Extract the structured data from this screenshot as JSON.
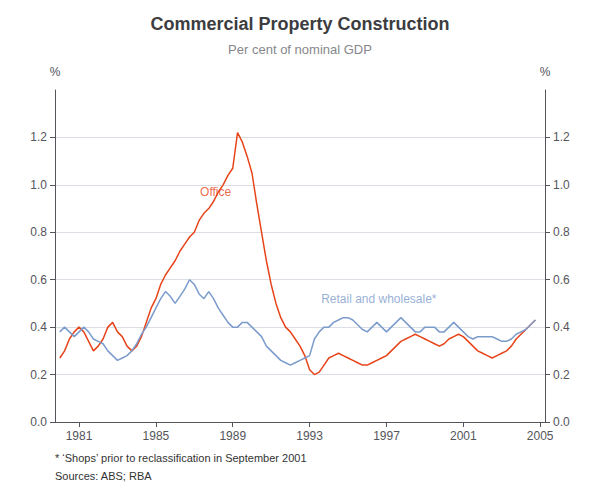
{
  "chart_data": {
    "type": "line",
    "title": "Commercial Property Construction",
    "subtitle": "Per cent of nominal GDP",
    "ylabel": "%",
    "y2label": "%",
    "footnotes": [
      "* ‘Shops’ prior to reclassification in September 2001",
      "Sources: ABS; RBA"
    ],
    "annotations": [
      {
        "text": "Office",
        "x": 1987.3,
        "y": 0.97,
        "color": "#e8441a"
      },
      {
        "text": "Retail and wholesale*",
        "x": 1993.6,
        "y": 0.52,
        "color": "#7b9bcc"
      }
    ],
    "x": [
      1980.0,
      1980.25,
      1980.5,
      1980.75,
      1981.0,
      1981.25,
      1981.5,
      1981.75,
      1982.0,
      1982.25,
      1982.5,
      1982.75,
      1983.0,
      1983.25,
      1983.5,
      1983.75,
      1984.0,
      1984.25,
      1984.5,
      1984.75,
      1985.0,
      1985.25,
      1985.5,
      1985.75,
      1986.0,
      1986.25,
      1986.5,
      1986.75,
      1987.0,
      1987.25,
      1987.5,
      1987.75,
      1988.0,
      1988.25,
      1988.5,
      1988.75,
      1989.0,
      1989.25,
      1989.5,
      1989.75,
      1990.0,
      1990.25,
      1990.5,
      1990.75,
      1991.0,
      1991.25,
      1991.5,
      1991.75,
      1992.0,
      1992.25,
      1992.5,
      1992.75,
      1993.0,
      1993.25,
      1993.5,
      1993.75,
      1994.0,
      1994.25,
      1994.5,
      1994.75,
      1995.0,
      1995.25,
      1995.5,
      1995.75,
      1996.0,
      1996.25,
      1996.5,
      1996.75,
      1997.0,
      1997.25,
      1997.5,
      1997.75,
      1998.0,
      1998.25,
      1998.5,
      1998.75,
      1999.0,
      1999.25,
      1999.5,
      1999.75,
      2000.0,
      2000.25,
      2000.5,
      2000.75,
      2001.0,
      2001.25,
      2001.5,
      2001.75,
      2002.0,
      2002.25,
      2002.5,
      2002.75,
      2003.0,
      2003.25,
      2003.5,
      2003.75,
      2004.0,
      2004.25,
      2004.5,
      2004.75
    ],
    "series": [
      {
        "color": "#e8441a",
        "values": [
          0.27,
          0.3,
          0.35,
          0.38,
          0.4,
          0.38,
          0.34,
          0.3,
          0.32,
          0.35,
          0.4,
          0.42,
          0.38,
          0.36,
          0.32,
          0.3,
          0.32,
          0.36,
          0.42,
          0.48,
          0.52,
          0.58,
          0.62,
          0.65,
          0.68,
          0.72,
          0.75,
          0.78,
          0.8,
          0.85,
          0.88,
          0.9,
          0.93,
          0.97,
          1.0,
          1.04,
          1.07,
          1.22,
          1.18,
          1.12,
          1.05,
          0.92,
          0.8,
          0.68,
          0.58,
          0.5,
          0.44,
          0.4,
          0.38,
          0.35,
          0.32,
          0.28,
          0.22,
          0.2,
          0.21,
          0.24,
          0.27,
          0.28,
          0.29,
          0.28,
          0.27,
          0.26,
          0.25,
          0.24,
          0.24,
          0.25,
          0.26,
          0.27,
          0.28,
          0.3,
          0.32,
          0.34,
          0.35,
          0.36,
          0.37,
          0.36,
          0.35,
          0.34,
          0.33,
          0.32,
          0.33,
          0.35,
          0.36,
          0.37,
          0.36,
          0.34,
          0.32,
          0.3,
          0.29,
          0.28,
          0.27,
          0.28,
          0.29,
          0.3,
          0.32,
          0.35,
          0.37,
          0.39,
          0.41,
          0.43
        ]
      },
      {
        "color": "#7b9bcc",
        "values": [
          0.38,
          0.4,
          0.38,
          0.36,
          0.38,
          0.4,
          0.38,
          0.35,
          0.34,
          0.33,
          0.3,
          0.28,
          0.26,
          0.27,
          0.28,
          0.3,
          0.33,
          0.37,
          0.4,
          0.44,
          0.48,
          0.52,
          0.55,
          0.53,
          0.5,
          0.53,
          0.56,
          0.6,
          0.58,
          0.54,
          0.52,
          0.55,
          0.52,
          0.48,
          0.45,
          0.42,
          0.4,
          0.4,
          0.42,
          0.42,
          0.4,
          0.38,
          0.36,
          0.32,
          0.3,
          0.28,
          0.26,
          0.25,
          0.24,
          0.25,
          0.26,
          0.27,
          0.28,
          0.35,
          0.38,
          0.4,
          0.4,
          0.42,
          0.43,
          0.44,
          0.44,
          0.43,
          0.41,
          0.39,
          0.38,
          0.4,
          0.42,
          0.4,
          0.38,
          0.4,
          0.42,
          0.44,
          0.42,
          0.4,
          0.38,
          0.38,
          0.4,
          0.4,
          0.4,
          0.38,
          0.38,
          0.4,
          0.42,
          0.4,
          0.38,
          0.36,
          0.35,
          0.36,
          0.36,
          0.36,
          0.36,
          0.35,
          0.34,
          0.34,
          0.35,
          0.37,
          0.38,
          0.39,
          0.41,
          0.43
        ]
      }
    ],
    "xlim": [
      1979.75,
      2005.25
    ],
    "xticks": [
      1981,
      1985,
      1989,
      1993,
      1997,
      2001,
      2005
    ],
    "ylim": [
      0.0,
      1.4
    ],
    "yticks": [
      {
        "value": 0.0,
        "label": "0.0"
      },
      0.2,
      0.4,
      0.6,
      0.8,
      {
        "value": 1.0,
        "label": "1.0"
      },
      1.2
    ],
    "y2lim": [
      0.0,
      1.4
    ],
    "y2ticks": [
      {
        "value": 0.0,
        "label": "0.0"
      },
      0.2,
      0.4,
      0.6,
      0.8,
      {
        "value": 1.0,
        "label": "1.0"
      },
      1.2
    ],
    "grid": true
  }
}
